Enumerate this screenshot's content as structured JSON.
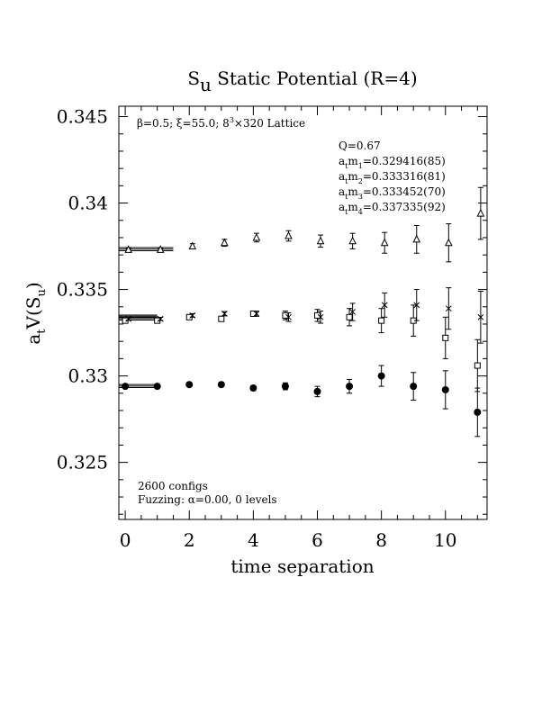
{
  "chart_data": {
    "type": "scatter",
    "title": {
      "main": "S",
      "sub": "u",
      "rest": " Static Potential (R=4)"
    },
    "xlabel": "time separation",
    "ylabel": {
      "a": "a",
      "t": "t",
      "mid": "V(S",
      "u": "u",
      "end": ")"
    },
    "xlim": [
      -0.2,
      11.3
    ],
    "ylim": [
      0.3217,
      0.3456
    ],
    "x_ticks": [
      0,
      2,
      4,
      6,
      8,
      10
    ],
    "x_tick_labels": [
      "0",
      "2",
      "4",
      "6",
      "8",
      "10"
    ],
    "y_ticks": [
      0.325,
      0.33,
      0.335,
      0.34,
      0.345
    ],
    "y_tick_labels": [
      "0.325",
      "0.33",
      "0.335",
      "0.34",
      "0.345"
    ],
    "annotations": {
      "lattice": {
        "beta": "β=0.5; ξ=55.0; 8",
        "sup": "3",
        "rest": "×320 Lattice"
      },
      "Q": "Q=0.67",
      "masses": [
        {
          "idx": "1",
          "value": "=0.329416(85)"
        },
        {
          "idx": "2",
          "value": "=0.333316(81)"
        },
        {
          "idx": "3",
          "value": "=0.333452(70)"
        },
        {
          "idx": "4",
          "value": "=0.337335(92)"
        }
      ],
      "configs": "2600 configs",
      "fuzzing": "Fuzzing: α=0.00, 0 levels"
    },
    "fit_lines": [
      {
        "y": 0.329416,
        "err": 8.5e-05,
        "x_range": [
          -0.2,
          1.0
        ]
      },
      {
        "y": 0.333316,
        "err": 8.1e-05,
        "x_range": [
          -0.2,
          1.0
        ]
      },
      {
        "y": 0.333452,
        "err": 7e-05,
        "x_range": [
          -0.2,
          1.0
        ]
      },
      {
        "y": 0.337335,
        "err": 9.2e-05,
        "x_range": [
          -0.2,
          1.5
        ]
      }
    ],
    "series": [
      {
        "marker": "filled-circle",
        "points": [
          [
            0.0,
            0.3294,
            8e-05
          ],
          [
            1.0,
            0.3294,
            9e-05
          ],
          [
            2.0,
            0.3295,
            0.0001
          ],
          [
            3.0,
            0.3295,
            0.00012
          ],
          [
            4.0,
            0.3293,
            0.00014
          ],
          [
            5.0,
            0.3294,
            0.0002
          ],
          [
            6.0,
            0.3291,
            0.0003
          ],
          [
            7.0,
            0.3294,
            0.0004
          ],
          [
            8.0,
            0.33,
            0.0006
          ],
          [
            9.0,
            0.3294,
            0.0008
          ],
          [
            10.0,
            0.3292,
            0.0011
          ],
          [
            11.0,
            0.3279,
            0.0014
          ]
        ]
      },
      {
        "marker": "open-square",
        "points": [
          [
            0.0,
            0.3332,
            8e-05
          ],
          [
            1.0,
            0.3332,
            9e-05
          ],
          [
            2.0,
            0.3334,
            0.0001
          ],
          [
            3.0,
            0.3333,
            0.00012
          ],
          [
            4.0,
            0.3336,
            0.00015
          ],
          [
            5.0,
            0.3335,
            0.00025
          ],
          [
            6.0,
            0.3335,
            0.00035
          ],
          [
            7.0,
            0.3334,
            0.0005
          ],
          [
            8.0,
            0.3332,
            0.0007
          ],
          [
            9.0,
            0.3332,
            0.0009
          ],
          [
            10.0,
            0.3322,
            0.0012
          ],
          [
            11.0,
            0.3306,
            0.0015
          ]
        ]
      },
      {
        "marker": "cross",
        "points": [
          [
            0.1,
            0.3333,
            8e-05
          ],
          [
            1.1,
            0.3333,
            9e-05
          ],
          [
            2.1,
            0.3335,
            0.0001
          ],
          [
            3.1,
            0.3336,
            0.00012
          ],
          [
            4.1,
            0.3336,
            0.00015
          ],
          [
            5.1,
            0.3334,
            0.00025
          ],
          [
            6.1,
            0.3334,
            0.00035
          ],
          [
            7.1,
            0.3337,
            0.0005
          ],
          [
            8.1,
            0.3341,
            0.0007
          ],
          [
            9.1,
            0.3341,
            0.0009
          ],
          [
            10.1,
            0.3339,
            0.0012
          ],
          [
            11.1,
            0.3334,
            0.0015
          ]
        ]
      },
      {
        "marker": "open-triangle",
        "points": [
          [
            0.1,
            0.3373,
            8e-05
          ],
          [
            1.1,
            0.3373,
            9e-05
          ],
          [
            2.1,
            0.3375,
            0.00015
          ],
          [
            3.1,
            0.3377,
            0.0002
          ],
          [
            4.1,
            0.338,
            0.00025
          ],
          [
            5.1,
            0.3381,
            0.0003
          ],
          [
            6.1,
            0.3378,
            0.00035
          ],
          [
            7.1,
            0.3378,
            0.00045
          ],
          [
            8.1,
            0.3377,
            0.0006
          ],
          [
            9.1,
            0.3379,
            0.0008
          ],
          [
            10.1,
            0.3377,
            0.0011
          ],
          [
            11.1,
            0.3394,
            0.0015
          ]
        ]
      }
    ]
  }
}
